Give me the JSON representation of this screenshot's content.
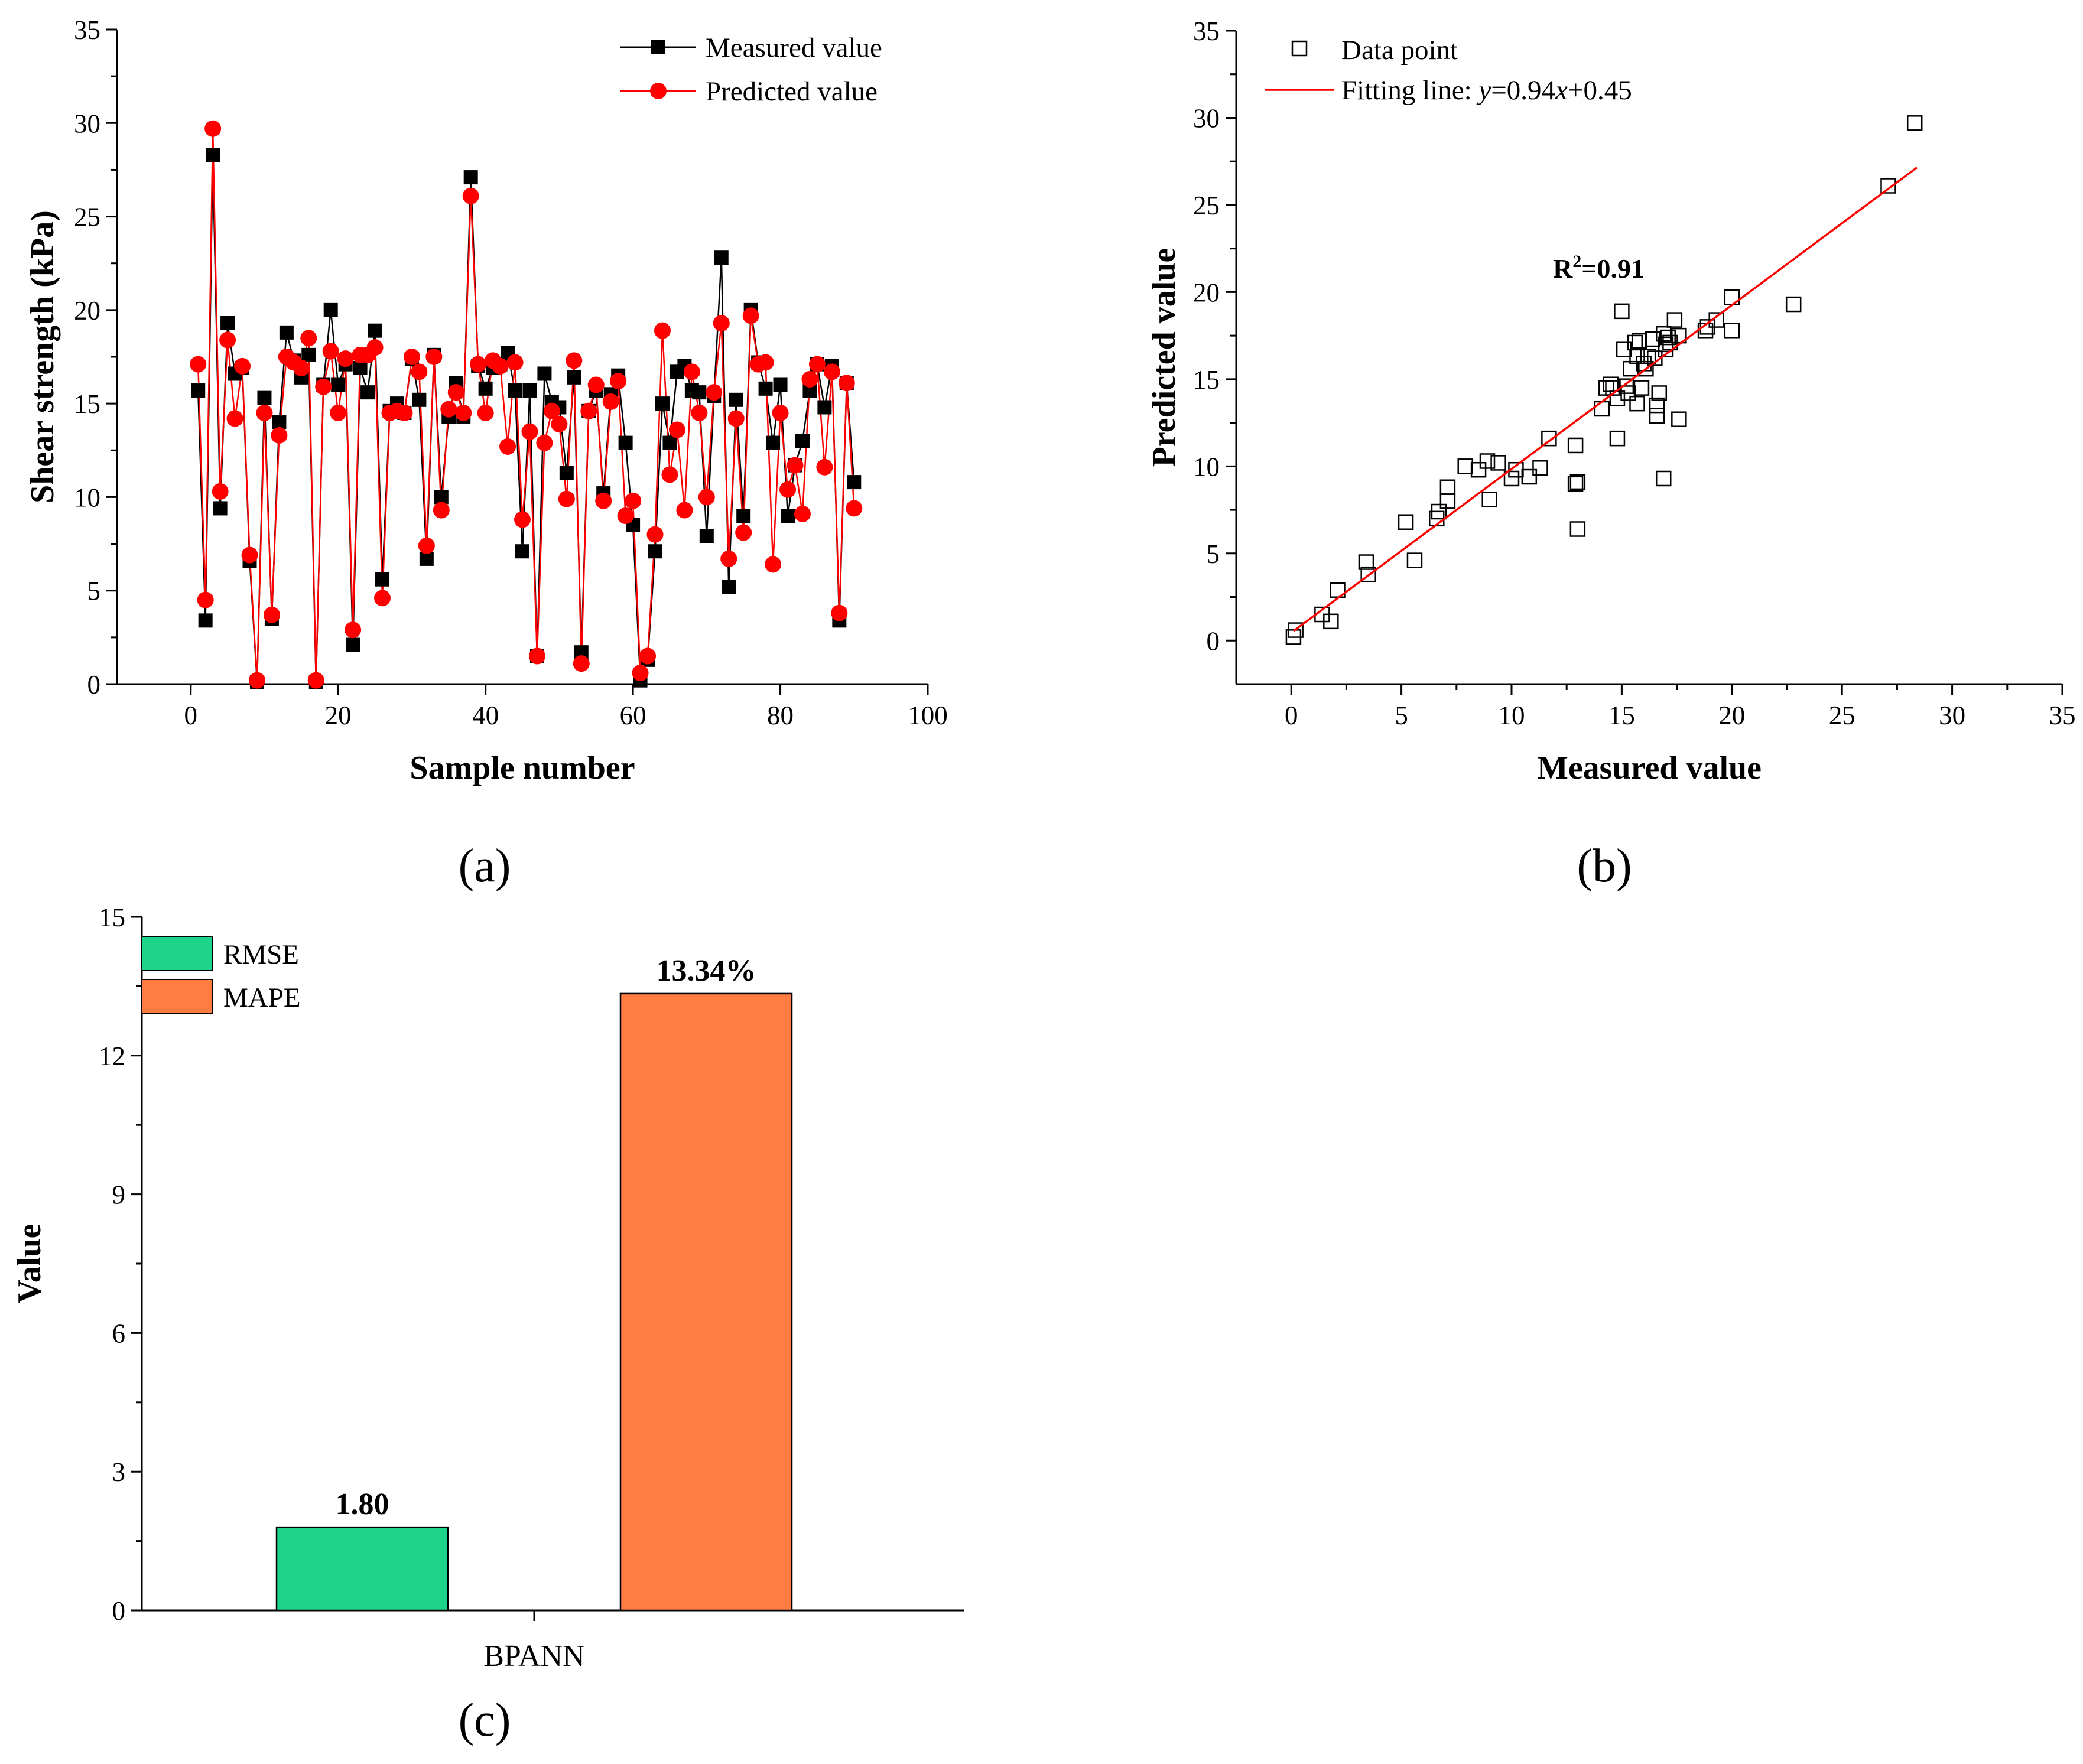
{
  "panels": [
    {
      "caption": "(a)",
      "chart_data": {
        "type": "line",
        "xlabel": "Sample number",
        "ylabel": "Shear strength (kPa)",
        "xlim": [
          -10,
          100
        ],
        "ylim": [
          0,
          35
        ],
        "xticks": [
          0,
          20,
          40,
          60,
          80,
          100
        ],
        "yticks": [
          0,
          5,
          10,
          15,
          20,
          25,
          30,
          35
        ],
        "legend_position": "top-right",
        "x": [
          1,
          2,
          3,
          4,
          5,
          6,
          7,
          8,
          9,
          10,
          11,
          12,
          13,
          14,
          15,
          16,
          17,
          18,
          19,
          20,
          21,
          22,
          23,
          24,
          25,
          26,
          27,
          28,
          29,
          30,
          31,
          32,
          33,
          34,
          35,
          36,
          37,
          38,
          39,
          40,
          41,
          42,
          43,
          44,
          45,
          46,
          47,
          48,
          49,
          50,
          51,
          52,
          53,
          54,
          55,
          56,
          57,
          58,
          59,
          60,
          61,
          62,
          63,
          64,
          65,
          66,
          67,
          68,
          69,
          70,
          71,
          72,
          73,
          74,
          75,
          76,
          77,
          78,
          79,
          80,
          81,
          82,
          83,
          84,
          85,
          86,
          87,
          88,
          89,
          90
        ],
        "series": [
          {
            "name": "Measured value",
            "marker": "square",
            "color": "#000000",
            "values": [
              15.7,
              3.4,
              28.3,
              9.4,
              19.3,
              16.6,
              16.9,
              6.6,
              0.1,
              15.3,
              3.5,
              14.0,
              18.8,
              17.3,
              16.4,
              17.6,
              0.1,
              16.0,
              20.0,
              16.0,
              17.1,
              2.1,
              16.9,
              15.6,
              18.9,
              5.6,
              14.6,
              15.0,
              14.5,
              17.4,
              15.2,
              6.7,
              17.6,
              10.0,
              14.3,
              16.1,
              14.3,
              27.1,
              17.0,
              15.8,
              16.9,
              17.1,
              17.7,
              15.7,
              7.1,
              15.7,
              1.5,
              16.6,
              15.1,
              14.8,
              11.3,
              16.4,
              1.7,
              14.6,
              15.7,
              10.2,
              15.5,
              16.5,
              12.9,
              8.5,
              0.2,
              1.3,
              7.1,
              15.0,
              12.9,
              16.7,
              17.0,
              15.7,
              15.6,
              7.9,
              15.4,
              22.8,
              5.2,
              15.2,
              9.0,
              20.0,
              17.2,
              15.8,
              12.9,
              16.0,
              9.0,
              11.7,
              13.0,
              15.7,
              17.1,
              14.8,
              17.0,
              3.4,
              16.1,
              10.8
            ]
          },
          {
            "name": "Predicted value",
            "marker": "circle",
            "color": "#ff0000",
            "values": [
              17.1,
              4.5,
              29.7,
              10.3,
              18.4,
              14.2,
              17.0,
              6.9,
              0.2,
              14.5,
              3.7,
              13.3,
              17.5,
              17.2,
              16.9,
              18.5,
              0.2,
              15.9,
              17.8,
              14.5,
              17.4,
              2.9,
              17.6,
              17.6,
              18.0,
              4.6,
              14.5,
              14.6,
              14.5,
              17.5,
              16.7,
              7.4,
              17.5,
              9.3,
              14.7,
              15.6,
              14.5,
              26.1,
              17.1,
              14.5,
              17.3,
              17.0,
              12.7,
              17.2,
              8.8,
              13.5,
              1.5,
              12.9,
              14.6,
              13.9,
              9.9,
              17.3,
              1.1,
              14.6,
              16.0,
              9.8,
              15.1,
              16.2,
              9.0,
              9.8,
              0.6,
              1.5,
              8.0,
              18.9,
              11.2,
              13.6,
              9.3,
              16.7,
              14.5,
              10.0,
              15.6,
              19.3,
              6.7,
              14.2,
              8.1,
              19.7,
              17.1,
              17.2,
              6.4,
              14.5,
              10.4,
              11.7,
              9.1,
              16.3,
              17.1,
              11.6,
              16.7,
              3.8,
              16.1,
              9.4
            ]
          }
        ]
      }
    },
    {
      "caption": "(b)",
      "chart_data": {
        "type": "scatter",
        "xlabel": "Measured value",
        "ylabel": "Predicted value",
        "xlim": [
          -2.5,
          35
        ],
        "ylim": [
          -2.5,
          35
        ],
        "xticks": [
          0,
          5,
          10,
          15,
          20,
          25,
          30,
          35
        ],
        "yticks": [
          0,
          5,
          10,
          15,
          20,
          25,
          30,
          35
        ],
        "legend_position": "top-left",
        "annotation": "R²=0.91",
        "annotation_value": 0.91,
        "series": [
          {
            "name": "Data point",
            "marker": "hollow-square",
            "points": [
              [
                0.1,
                0.2
              ],
              [
                0.2,
                0.6
              ],
              [
                1.4,
                1.5
              ],
              [
                1.8,
                1.1
              ],
              [
                2.1,
                2.9
              ],
              [
                3.4,
                4.5
              ],
              [
                3.5,
                3.8
              ],
              [
                5.2,
                6.8
              ],
              [
                5.6,
                4.6
              ],
              [
                6.6,
                7.0
              ],
              [
                6.7,
                7.4
              ],
              [
                7.1,
                8.0
              ],
              [
                7.1,
                8.8
              ],
              [
                7.9,
                10.0
              ],
              [
                8.5,
                9.8
              ],
              [
                8.9,
                10.3
              ],
              [
                9.0,
                8.1
              ],
              [
                9.4,
                10.2
              ],
              [
                10.0,
                9.3
              ],
              [
                10.2,
                9.8
              ],
              [
                10.8,
                9.4
              ],
              [
                11.3,
                9.9
              ],
              [
                11.7,
                11.6
              ],
              [
                12.9,
                11.2
              ],
              [
                12.9,
                9.0
              ],
              [
                13.0,
                9.1
              ],
              [
                13.0,
                6.4
              ],
              [
                14.1,
                13.3
              ],
              [
                14.3,
                14.5
              ],
              [
                14.5,
                14.7
              ],
              [
                14.6,
                14.5
              ],
              [
                14.8,
                11.6
              ],
              [
                14.8,
                13.9
              ],
              [
                15.0,
                18.9
              ],
              [
                15.1,
                16.7
              ],
              [
                15.2,
                14.6
              ],
              [
                15.3,
                14.2
              ],
              [
                15.4,
                15.6
              ],
              [
                15.6,
                17.1
              ],
              [
                15.7,
                13.6
              ],
              [
                15.7,
                16.3
              ],
              [
                15.8,
                17.2
              ],
              [
                15.9,
                14.5
              ],
              [
                16.0,
                15.9
              ],
              [
                16.1,
                15.6
              ],
              [
                16.2,
                16.3
              ],
              [
                16.4,
                17.3
              ],
              [
                16.5,
                16.2
              ],
              [
                16.6,
                12.9
              ],
              [
                16.6,
                13.5
              ],
              [
                16.7,
                14.2
              ],
              [
                16.9,
                9.3
              ],
              [
                16.9,
                17.6
              ],
              [
                17.0,
                17.0
              ],
              [
                17.0,
                16.7
              ],
              [
                17.1,
                17.4
              ],
              [
                17.2,
                17.1
              ],
              [
                17.4,
                18.4
              ],
              [
                17.6,
                17.5
              ],
              [
                17.6,
                12.7
              ],
              [
                18.8,
                17.8
              ],
              [
                18.9,
                18.0
              ],
              [
                19.3,
                18.4
              ],
              [
                20.0,
                17.8
              ],
              [
                20.0,
                19.7
              ],
              [
                22.8,
                19.3
              ],
              [
                27.1,
                26.1
              ],
              [
                28.3,
                29.7
              ]
            ]
          },
          {
            "name": "Fitting line: y=0.94x+0.45",
            "name_parts": [
              "Fitting line: ",
              "y",
              "=0.94",
              "x",
              "+0.45"
            ],
            "type": "line",
            "color": "#ff0000",
            "slope": 0.94,
            "intercept": 0.45,
            "x_range": [
              0.1,
              28.4
            ]
          }
        ]
      }
    },
    {
      "caption": "(c)",
      "chart_data": {
        "type": "bar",
        "categories": [
          "BPANN"
        ],
        "xlabel": "",
        "ylabel": "Value",
        "ylim": [
          0,
          15
        ],
        "yticks": [
          0,
          3,
          6,
          9,
          12,
          15
        ],
        "legend_position": "top-left",
        "series": [
          {
            "name": "RMSE",
            "color": "#1ed48a",
            "values": [
              1.8
            ],
            "label": "1.80"
          },
          {
            "name": "MAPE",
            "color": "#ff7c43",
            "values": [
              13.34
            ],
            "label": "13.34%"
          }
        ]
      }
    }
  ]
}
